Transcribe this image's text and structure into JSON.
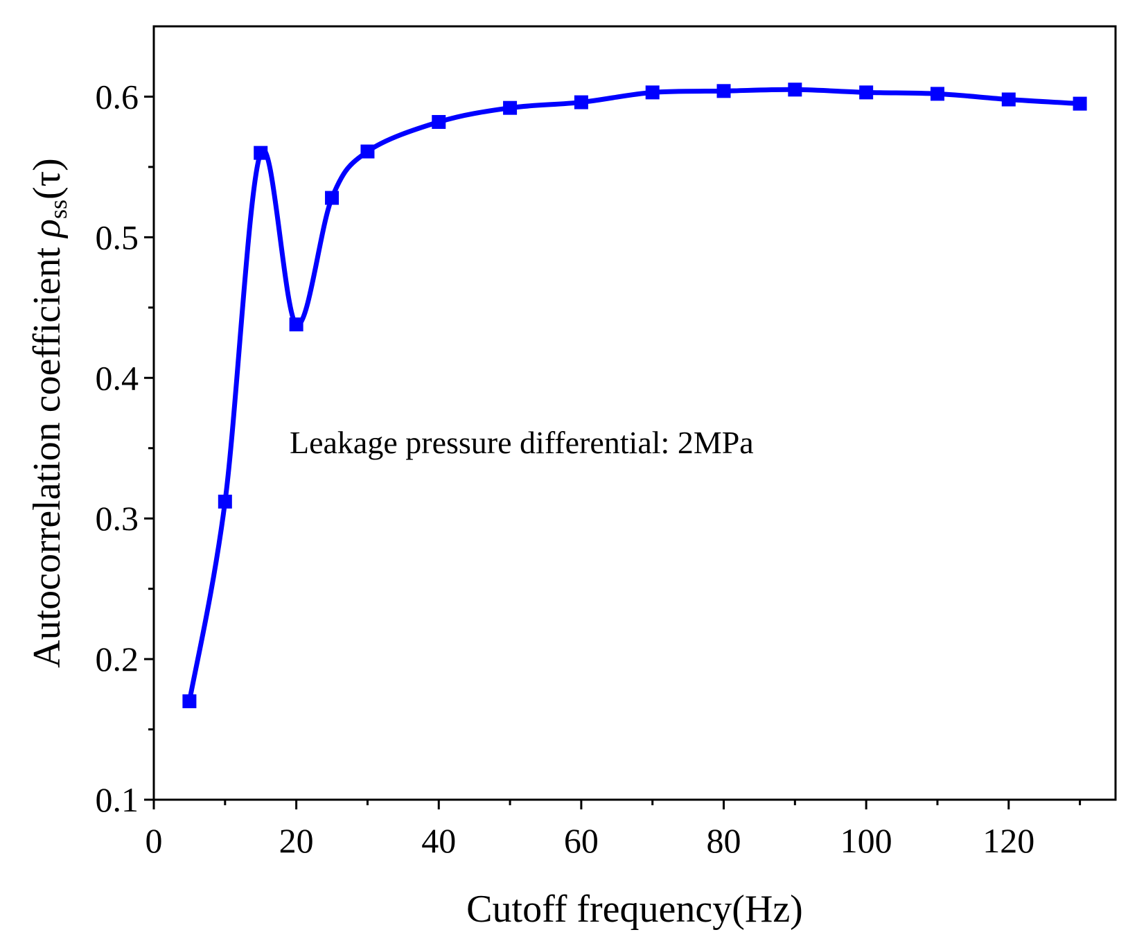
{
  "chart_data": {
    "type": "line",
    "title": "",
    "xlabel": "Cutoff frequency(Hz)",
    "ylabel": {
      "text": "Autocorrelation coefficient ",
      "symbol": "ρ",
      "subscript": "ss",
      "suffix": "(τ)"
    },
    "xlim": [
      0,
      135
    ],
    "ylim": [
      0.1,
      0.65
    ],
    "xticks": [
      0,
      20,
      40,
      60,
      80,
      100,
      120
    ],
    "xtick_labels": [
      "0",
      "20",
      "40",
      "60",
      "80",
      "100",
      "120"
    ],
    "xminor": [
      10,
      30,
      50,
      70,
      90,
      110,
      130
    ],
    "yticks": [
      0.1,
      0.2,
      0.3,
      0.4,
      0.5,
      0.6
    ],
    "ytick_labels": [
      "0.1",
      "0.2",
      "0.3",
      "0.4",
      "0.5",
      "0.6"
    ],
    "yminor": [
      0.15,
      0.25,
      0.35,
      0.45,
      0.55
    ],
    "grid": false,
    "series": [
      {
        "name": "Leakage pressure differential: 2MPa",
        "color": "#0000ff",
        "marker": "square",
        "x": [
          5,
          10,
          15,
          20,
          25,
          30,
          40,
          50,
          60,
          70,
          80,
          90,
          100,
          110,
          120,
          130
        ],
        "values": [
          0.17,
          0.312,
          0.56,
          0.438,
          0.528,
          0.561,
          0.582,
          0.592,
          0.596,
          0.603,
          0.604,
          0.605,
          0.603,
          0.602,
          0.598,
          0.595
        ]
      }
    ],
    "annotations": [
      {
        "text": "Leakage pressure differential: 2MPa",
        "x": 19.5,
        "y": 0.36
      }
    ]
  }
}
